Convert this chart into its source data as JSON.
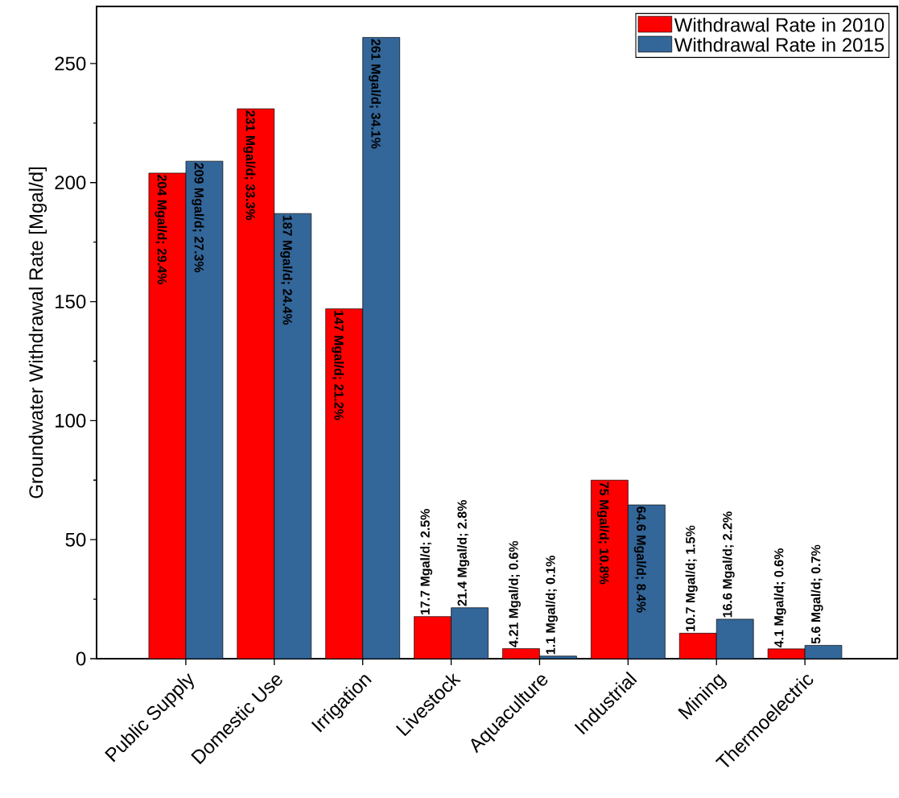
{
  "chart_data": {
    "type": "bar",
    "ylabel": "Groundwater Withdrawal Rate [Mgal/d]",
    "categories": [
      "Public Supply",
      "Domestic Use",
      "Irrigation",
      "Livestock",
      "Aquaculture",
      "Industrial",
      "Mining",
      "Thermoelectric"
    ],
    "series": [
      {
        "name": "Withdrawal Rate in 2010",
        "color": "#ff0000",
        "values": [
          204,
          231,
          147,
          17.7,
          4.21,
          75,
          10.7,
          4.1
        ],
        "value_labels": [
          "204 Mgal/d; 29.4%",
          "231 Mgal/d; 33.3%",
          "147 Mgal/d; 21.2%",
          "17.7 Mgal/d; 2.5%",
          "4.21 Mgal/d; 0.6%",
          "75 Mgal/d; 10.8%",
          "10.7 Mgal/d; 1.5%",
          "4.1 Mgal/d; 0.6%"
        ]
      },
      {
        "name": "Withdrawal Rate in 2015",
        "color": "#336699",
        "values": [
          209,
          187,
          261,
          21.4,
          1.1,
          64.6,
          16.6,
          5.6
        ],
        "value_labels": [
          "209 Mgal/d; 27.3%",
          "187 Mgal/d; 24.4%",
          "261 Mgal/d; 34.1%",
          "21.4 Mgal/d; 2.8%",
          "1.1 Mgal/d; 0.1%",
          "64.6 Mgal/d; 8.4%",
          "16.6 Mgal/d; 2.2%",
          "5.6 Mgal/d; 0.7%"
        ]
      }
    ],
    "ylim": [
      0,
      274
    ],
    "yticks": [
      0,
      50,
      100,
      150,
      200,
      250
    ],
    "legend": "top right",
    "grid": false
  }
}
